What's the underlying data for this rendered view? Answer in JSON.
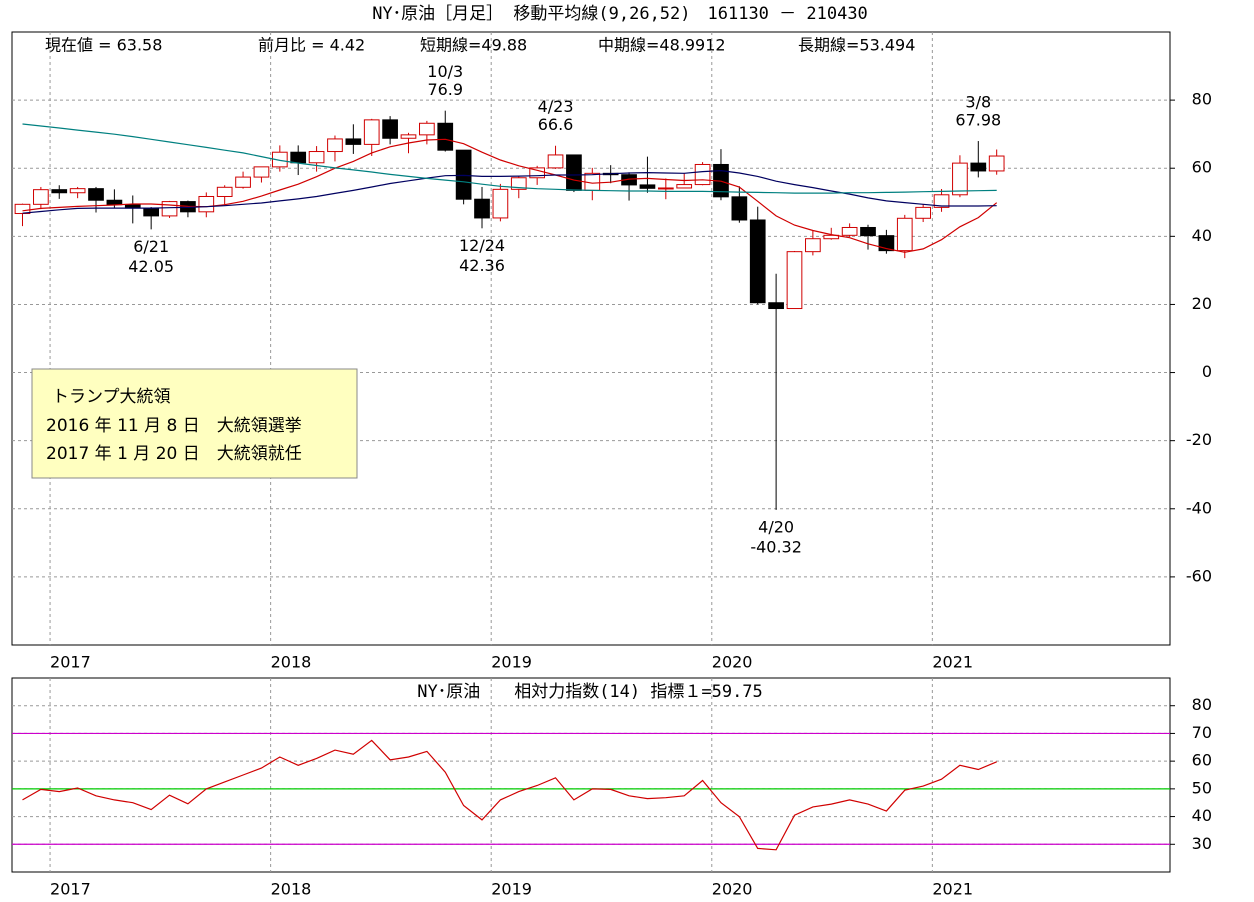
{
  "chart_data": [
    {
      "type": "candlestick",
      "title": "NY･原油［月足］ 移動平均線(9,26,52)　161130 － 210430",
      "info": [
        "現在値 = 63.58",
        "前月比 = 4.42",
        "短期線=49.88",
        "中期線=48.9912",
        "長期線=53.494"
      ],
      "note": [
        "トランプ大統領",
        "2016 年 11 月 8 日　大統領選挙",
        "2017 年 1 月 20 日　大統領就任"
      ],
      "categories": [
        null,
        null,
        "2017",
        null,
        null,
        null,
        null,
        null,
        null,
        null,
        null,
        null,
        null,
        null,
        "2018",
        null,
        null,
        null,
        null,
        null,
        null,
        null,
        null,
        null,
        null,
        null,
        "2019",
        null,
        null,
        null,
        null,
        null,
        null,
        null,
        null,
        null,
        null,
        null,
        "2020",
        null,
        null,
        null,
        null,
        null,
        null,
        null,
        null,
        null,
        null,
        null,
        "2021",
        null,
        null,
        null
      ],
      "open": [
        46.7,
        49.4,
        53.7,
        52.8,
        54,
        50.6,
        49.3,
        48.3,
        46,
        50.2,
        47.2,
        51.7,
        54.4,
        57.4,
        60.4,
        64.7,
        61.6,
        64.9,
        68.6,
        67,
        74.2,
        68.8,
        69.8,
        73.2,
        65.3,
        50.9,
        45.4,
        53.8,
        57.2,
        60.1,
        63.9,
        53.5,
        58.5,
        58.1,
        55.1,
        54.1,
        54.2,
        55.2,
        61.1,
        51.6,
        44.8,
        20.5,
        18.8,
        35.5,
        39.3,
        40.3,
        42.6,
        40.2,
        35.8,
        45.3,
        48.5,
        52.2,
        61.5,
        59.2
      ],
      "high": [
        49.6,
        54.5,
        55,
        54.5,
        54.5,
        53.8,
        52,
        48.6,
        50.4,
        50.5,
        52.9,
        55,
        59,
        60.5,
        66.7,
        66.7,
        66.5,
        69.6,
        72.9,
        74.5,
        75.3,
        70.4,
        73.9,
        76.9,
        65.3,
        54.5,
        55.4,
        57.8,
        60.7,
        66.6,
        63.9,
        60.1,
        60.9,
        58.8,
        63.4,
        57,
        58.6,
        61.8,
        65.6,
        54.7,
        48.7,
        29,
        35.7,
        41.6,
        42.5,
        43.8,
        43.4,
        41.9,
        46.3,
        49.4,
        53.9,
        63.8,
        67.98,
        65.5
      ],
      "low": [
        43,
        48,
        51,
        51.2,
        47,
        48.2,
        43.8,
        42.05,
        45.4,
        45.6,
        45.6,
        49.1,
        54,
        55.8,
        59,
        58,
        59,
        62,
        64.2,
        63.6,
        67,
        64.4,
        67,
        64.9,
        49.4,
        42.36,
        44.4,
        51.2,
        55.1,
        59.8,
        53,
        50.6,
        55.6,
        50.5,
        52.8,
        50.9,
        54.2,
        55,
        50.6,
        44,
        20,
        -40.32,
        18.8,
        34.4,
        39,
        39.8,
        36.1,
        34.9,
        33.6,
        44.2,
        47.2,
        51.5,
        57.3,
        58.1
      ],
      "close": [
        49.4,
        53.7,
        52.8,
        54,
        50.6,
        49.3,
        48.3,
        46,
        50.2,
        47.2,
        51.7,
        54.4,
        57.4,
        60.4,
        64.7,
        61.6,
        64.9,
        68.6,
        67,
        74.2,
        68.8,
        69.8,
        73.2,
        65.3,
        50.9,
        45.4,
        53.8,
        57.2,
        60.1,
        63.9,
        53.5,
        58.5,
        58.1,
        55.1,
        54.1,
        54.2,
        55.2,
        61.1,
        51.6,
        44.8,
        20.5,
        18.8,
        35.5,
        39.3,
        40.3,
        42.6,
        40.2,
        35.8,
        45.3,
        48.5,
        52.2,
        61.5,
        59.2,
        63.58
      ],
      "up_color": "#ffffff",
      "up_edge_color": "#d00000",
      "down_color": "#000000",
      "series": [
        {
          "color": "#d00000",
          "values": [
            47.5,
            48.2,
            48.5,
            48.8,
            49,
            49.2,
            49.5,
            49.5,
            49.2,
            48.8,
            48.7,
            49.3,
            50.3,
            51.8,
            53.6,
            55.3,
            57.5,
            60,
            62,
            64.5,
            66.3,
            67.4,
            68.3,
            68.5,
            67.2,
            64.7,
            62.4,
            60.7,
            59.4,
            58,
            56.5,
            55.6,
            55.9,
            56.8,
            57,
            56.7,
            56.4,
            56.6,
            56.2,
            54.5,
            50.3,
            46,
            43.3,
            41.7,
            40.5,
            39.6,
            37.8,
            36.4,
            35.3,
            36.3,
            39,
            42.8,
            45.5,
            49.88
          ]
        },
        {
          "color": "#000060",
          "values": [
            46.8,
            47.3,
            47.8,
            48.2,
            48.3,
            48.3,
            48.3,
            48.3,
            48.4,
            48.5,
            48.7,
            49,
            49.4,
            49.8,
            50.4,
            51,
            51.7,
            52.6,
            53.5,
            54.5,
            55.5,
            56.3,
            57.1,
            57.8,
            57.9,
            57.6,
            57.6,
            57.7,
            57.8,
            58,
            58,
            58.1,
            58.4,
            58.6,
            58.7,
            58.6,
            58.5,
            59,
            59.3,
            58.6,
            57.6,
            56.2,
            55.2,
            54.3,
            53.3,
            52.4,
            51.3,
            50.4,
            49.9,
            49.4,
            48.9,
            48.9,
            48.9,
            48.9912
          ]
        },
        {
          "color": "#008080",
          "values": [
            73,
            72.4,
            71.8,
            71.2,
            70.6,
            70,
            69.3,
            68.5,
            67.7,
            66.9,
            66.1,
            65.3,
            64.5,
            63.4,
            62.3,
            61.5,
            60.8,
            60.1,
            59.5,
            58.9,
            58.2,
            57.6,
            57,
            56.5,
            56,
            55.3,
            54.7,
            54.3,
            54,
            53.8,
            53.6,
            53.5,
            53.4,
            53.3,
            53.3,
            53.2,
            53.2,
            53.2,
            53.1,
            53,
            52.9,
            52.8,
            52.7,
            52.7,
            52.7,
            52.8,
            52.8,
            52.9,
            53,
            53.1,
            53.2,
            53.3,
            53.4,
            53.494
          ]
        }
      ],
      "annotations": [
        {
          "date": "10/3",
          "value": 76.9
        },
        {
          "date": "4/23",
          "value": 66.6
        },
        {
          "date": "6/21",
          "value": 42.05
        },
        {
          "date": "12/24",
          "value": 42.36
        },
        {
          "date": "4/20",
          "value": -40.32
        },
        {
          "date": "3/8",
          "value": 67.98
        }
      ],
      "ylim": [
        -80,
        100
      ],
      "yticks": [
        -60,
        -40,
        -20,
        0,
        20,
        40,
        60,
        80
      ],
      "grid": true
    },
    {
      "type": "line",
      "title": "NY･原油　　相対力指数(14) 指標１=59.75",
      "categories": [
        null,
        null,
        "2017",
        null,
        null,
        null,
        null,
        null,
        null,
        null,
        null,
        null,
        null,
        null,
        "2018",
        null,
        null,
        null,
        null,
        null,
        null,
        null,
        null,
        null,
        null,
        null,
        "2019",
        null,
        null,
        null,
        null,
        null,
        null,
        null,
        null,
        null,
        null,
        null,
        "2020",
        null,
        null,
        null,
        null,
        null,
        null,
        null,
        null,
        null,
        null,
        null,
        "2021",
        null,
        null,
        null
      ],
      "series": [
        {
          "color": "#d00000",
          "values": [
            46,
            49.8,
            49,
            50.3,
            47.5,
            46,
            45,
            42.5,
            47.7,
            44.6,
            50,
            52.5,
            55,
            57.5,
            61.5,
            58.5,
            61,
            64,
            62.5,
            67.5,
            60.5,
            61.5,
            63.5,
            56,
            44,
            38.8,
            46,
            49,
            51.2,
            54,
            46,
            50,
            49.8,
            47.5,
            46.5,
            46.8,
            47.5,
            53,
            45,
            40,
            28.5,
            28,
            40.5,
            43.5,
            44.5,
            46,
            44.5,
            42,
            49.5,
            51,
            53.5,
            58.5,
            57,
            59.75
          ]
        }
      ],
      "reference_lines": [
        {
          "value": 70,
          "color": "#cc00cc"
        },
        {
          "value": 50,
          "color": "#00cc00"
        },
        {
          "value": 30,
          "color": "#cc00cc"
        }
      ],
      "ylim": [
        20,
        90
      ],
      "yticks": [
        30,
        40,
        50,
        60,
        70,
        80
      ],
      "grid": true
    }
  ]
}
